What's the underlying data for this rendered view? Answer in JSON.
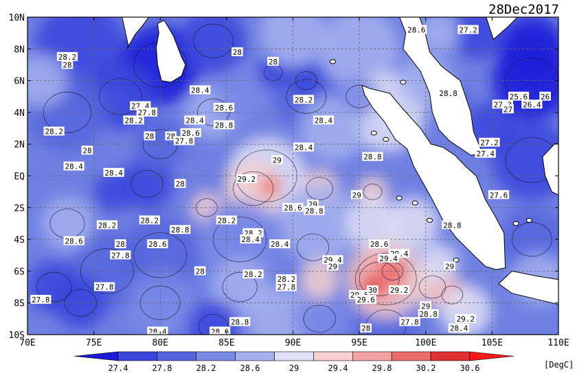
{
  "date_label": "28Dec2017",
  "units_label": "[DegC]",
  "chart_data": {
    "type": "heatmap",
    "title": "",
    "x_ticks": [
      "70E",
      "75E",
      "80E",
      "85E",
      "90E",
      "95E",
      "100E",
      "105E",
      "110E"
    ],
    "y_ticks": [
      "10N",
      "8N",
      "6N",
      "4N",
      "2N",
      "EQ",
      "2S",
      "4S",
      "6S",
      "8S",
      "10S"
    ],
    "xlim": [
      70,
      110
    ],
    "ylim": [
      -10,
      10
    ],
    "grid": true,
    "colorbar": {
      "levels": [
        "27.4",
        "27.8",
        "28.2",
        "28.6",
        "29",
        "29.4",
        "29.8",
        "30.2",
        "30.6"
      ],
      "colors": [
        "#1b1bd8",
        "#3a46dc",
        "#5566dd",
        "#7a88e6",
        "#a4b0ee",
        "#dfe0f6",
        "#f6d0d0",
        "#f3a3a3",
        "#ec6b6b",
        "#e13030",
        "#f21b1b"
      ]
    },
    "contour_labels": [
      {
        "lon": 73.0,
        "lat": 7.5,
        "text": "28.2"
      },
      {
        "lon": 73.0,
        "lat": 7.0,
        "text": "28"
      },
      {
        "lon": 72.0,
        "lat": 2.8,
        "text": "28.2"
      },
      {
        "lon": 78.0,
        "lat": 3.5,
        "text": "28.2"
      },
      {
        "lon": 73.5,
        "lat": 0.6,
        "text": "28.4"
      },
      {
        "lon": 74.5,
        "lat": 1.6,
        "text": "28"
      },
      {
        "lon": 76.5,
        "lat": 0.2,
        "text": "28.4"
      },
      {
        "lon": 78.5,
        "lat": 4.4,
        "text": "27.4"
      },
      {
        "lon": 79.0,
        "lat": 4.0,
        "text": "27.8"
      },
      {
        "lon": 79.2,
        "lat": 2.5,
        "text": "28"
      },
      {
        "lon": 80.8,
        "lat": 2.5,
        "text": "28"
      },
      {
        "lon": 82.3,
        "lat": 2.7,
        "text": "28.6"
      },
      {
        "lon": 81.8,
        "lat": 2.2,
        "text": "27.8"
      },
      {
        "lon": 82.6,
        "lat": 3.5,
        "text": "28.4"
      },
      {
        "lon": 81.5,
        "lat": -0.5,
        "text": "28"
      },
      {
        "lon": 83.0,
        "lat": 5.4,
        "text": "28.4"
      },
      {
        "lon": 84.8,
        "lat": 4.3,
        "text": "28.6"
      },
      {
        "lon": 84.8,
        "lat": 3.2,
        "text": "28.8"
      },
      {
        "lon": 85.8,
        "lat": 7.8,
        "text": "28"
      },
      {
        "lon": 88.5,
        "lat": 7.2,
        "text": "28"
      },
      {
        "lon": 90.8,
        "lat": 4.8,
        "text": "28.2"
      },
      {
        "lon": 90.8,
        "lat": 1.8,
        "text": "28.4"
      },
      {
        "lon": 92.3,
        "lat": 3.5,
        "text": "28.4"
      },
      {
        "lon": 88.8,
        "lat": 1.0,
        "text": "29"
      },
      {
        "lon": 86.5,
        "lat": -0.2,
        "text": "29.2"
      },
      {
        "lon": 90.0,
        "lat": -2.0,
        "text": "28.6"
      },
      {
        "lon": 91.5,
        "lat": -1.8,
        "text": "29"
      },
      {
        "lon": 91.6,
        "lat": -2.2,
        "text": "28.8"
      },
      {
        "lon": 94.8,
        "lat": -1.2,
        "text": "29"
      },
      {
        "lon": 96.0,
        "lat": 1.2,
        "text": "28.8"
      },
      {
        "lon": 99.3,
        "lat": 9.2,
        "text": "28.6"
      },
      {
        "lon": 101.7,
        "lat": 5.2,
        "text": "28.8"
      },
      {
        "lon": 103.2,
        "lat": 9.2,
        "text": "27.2"
      },
      {
        "lon": 76.0,
        "lat": -3.1,
        "text": "28.2"
      },
      {
        "lon": 79.2,
        "lat": -2.8,
        "text": "28.2"
      },
      {
        "lon": 81.5,
        "lat": -3.4,
        "text": "28.8"
      },
      {
        "lon": 85.0,
        "lat": -2.8,
        "text": "28.2"
      },
      {
        "lon": 87.0,
        "lat": -3.6,
        "text": "28.2"
      },
      {
        "lon": 86.8,
        "lat": -4.0,
        "text": "28.4"
      },
      {
        "lon": 89.0,
        "lat": -4.3,
        "text": "28.4"
      },
      {
        "lon": 73.5,
        "lat": -4.1,
        "text": "28.6"
      },
      {
        "lon": 79.8,
        "lat": -4.3,
        "text": "28.6"
      },
      {
        "lon": 77.0,
        "lat": -4.3,
        "text": "28"
      },
      {
        "lon": 77.0,
        "lat": -5.0,
        "text": "27.8"
      },
      {
        "lon": 75.8,
        "lat": -7.0,
        "text": "27.8"
      },
      {
        "lon": 71.0,
        "lat": -7.8,
        "text": "27.8"
      },
      {
        "lon": 83.0,
        "lat": -6.0,
        "text": "28"
      },
      {
        "lon": 87.0,
        "lat": -6.2,
        "text": "28.2"
      },
      {
        "lon": 89.5,
        "lat": -6.5,
        "text": "28.2"
      },
      {
        "lon": 89.5,
        "lat": -7.0,
        "text": "27.8"
      },
      {
        "lon": 93.0,
        "lat": -5.3,
        "text": "29.4"
      },
      {
        "lon": 93.0,
        "lat": -5.7,
        "text": "29"
      },
      {
        "lon": 96.5,
        "lat": -4.3,
        "text": "28.6"
      },
      {
        "lon": 98.0,
        "lat": -4.9,
        "text": "29.4"
      },
      {
        "lon": 97.2,
        "lat": -5.2,
        "text": "29.4"
      },
      {
        "lon": 102.0,
        "lat": -3.1,
        "text": "28.8"
      },
      {
        "lon": 101.8,
        "lat": -5.7,
        "text": "29"
      },
      {
        "lon": 95.0,
        "lat": -7.5,
        "text": "29.8"
      },
      {
        "lon": 95.5,
        "lat": -7.8,
        "text": "29.6"
      },
      {
        "lon": 96.0,
        "lat": -7.2,
        "text": "30"
      },
      {
        "lon": 98.0,
        "lat": -7.2,
        "text": "29.2"
      },
      {
        "lon": 100.0,
        "lat": -8.2,
        "text": "29"
      },
      {
        "lon": 100.2,
        "lat": -8.7,
        "text": "28.8"
      },
      {
        "lon": 103.0,
        "lat": -9.0,
        "text": "29.2"
      },
      {
        "lon": 102.5,
        "lat": -9.6,
        "text": "28.4"
      },
      {
        "lon": 98.8,
        "lat": -9.2,
        "text": "27.8"
      },
      {
        "lon": 95.5,
        "lat": -9.6,
        "text": "28"
      },
      {
        "lon": 86.0,
        "lat": -9.2,
        "text": "28.8"
      },
      {
        "lon": 84.5,
        "lat": -9.8,
        "text": "28.6"
      },
      {
        "lon": 84.5,
        "lat": -10.2,
        "text": "28.4"
      },
      {
        "lon": 79.8,
        "lat": -9.8,
        "text": "28.4"
      },
      {
        "lon": 79.8,
        "lat": -10.2,
        "text": "28.2"
      },
      {
        "lon": 76.0,
        "lat": -10.3,
        "text": "28"
      },
      {
        "lon": 104.8,
        "lat": 2.1,
        "text": "27.2"
      },
      {
        "lon": 104.5,
        "lat": 1.4,
        "text": "27.4"
      },
      {
        "lon": 105.5,
        "lat": -1.2,
        "text": "27.6"
      },
      {
        "lon": 105.8,
        "lat": 4.5,
        "text": "27.3"
      },
      {
        "lon": 106.2,
        "lat": 4.2,
        "text": "27"
      },
      {
        "lon": 107.0,
        "lat": 5.0,
        "text": "25.6"
      },
      {
        "lon": 108.0,
        "lat": 4.5,
        "text": "26.4"
      },
      {
        "lon": 109.0,
        "lat": 5.0,
        "text": "26"
      }
    ]
  }
}
